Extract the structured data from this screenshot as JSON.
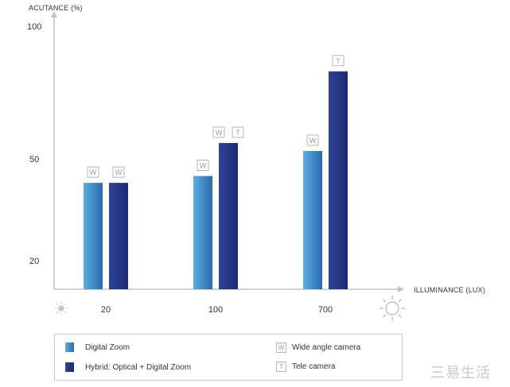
{
  "chart_data": {
    "type": "bar",
    "ylabel": "ACUTANCE (%)",
    "xlabel": "ILLUMINANCE (LUX)",
    "categories": [
      "20",
      "100",
      "700"
    ],
    "y_ticks": [
      "100",
      "50",
      "20"
    ],
    "series": [
      {
        "name": "Digital Zoom",
        "values": [
          43,
          45,
          53
        ],
        "badges": [
          "W",
          "W",
          "W"
        ]
      },
      {
        "name": "Hybrid: Optical + Digital Zoom",
        "values": [
          43,
          56,
          83
        ],
        "badges": [
          "W",
          "W·T",
          "T"
        ]
      }
    ],
    "grid": false,
    "legend_position": "bottom"
  },
  "legend": {
    "digital_zoom": "Digital Zoom",
    "hybrid": "Hybrid: Optical + Digital Zoom",
    "wide_badge": "W",
    "wide": "Wide angle camera",
    "tele_badge": "T",
    "tele": "Tele camera"
  },
  "colors": {
    "digital_zoom_top": "#4f9fd6",
    "digital_zoom_bottom": "#2a64a9",
    "hybrid_top": "#2c3f93",
    "hybrid_bottom": "#1f2c77"
  },
  "watermark": "三易生活"
}
